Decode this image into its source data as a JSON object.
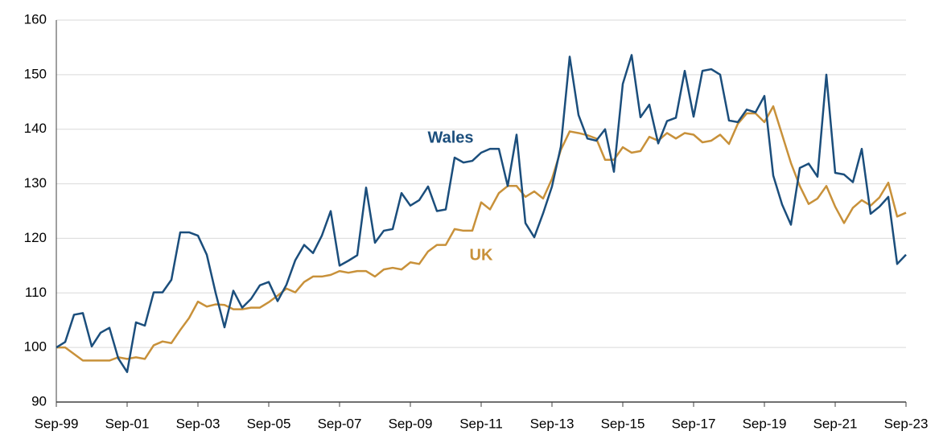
{
  "chart_data": {
    "type": "line",
    "categories": [
      "Sep-99",
      null,
      null,
      null,
      null,
      null,
      null,
      null,
      "Sep-01",
      null,
      null,
      null,
      null,
      null,
      null,
      null,
      "Sep-03",
      null,
      null,
      null,
      null,
      null,
      null,
      null,
      "Sep-05",
      null,
      null,
      null,
      null,
      null,
      null,
      null,
      "Sep-07",
      null,
      null,
      null,
      null,
      null,
      null,
      null,
      "Sep-09",
      null,
      null,
      null,
      null,
      null,
      null,
      null,
      "Sep-11",
      null,
      null,
      null,
      null,
      null,
      null,
      null,
      "Sep-13",
      null,
      null,
      null,
      null,
      null,
      null,
      null,
      "Sep-15",
      null,
      null,
      null,
      null,
      null,
      null,
      null,
      "Sep-17",
      null,
      null,
      null,
      null,
      null,
      null,
      null,
      "Sep-19",
      null,
      null,
      null,
      null,
      null,
      null,
      null,
      "Sep-21",
      null,
      null,
      null,
      null,
      null,
      null,
      null,
      "Sep-23"
    ],
    "series": [
      {
        "name": "Wales",
        "color": "#1b4e7c",
        "values": [
          100,
          101,
          106,
          106.3,
          100.2,
          102.7,
          103.6,
          98,
          95.5,
          104.6,
          104,
          110.1,
          110.1,
          112.4,
          121.1,
          121.1,
          120.5,
          117,
          110,
          103.7,
          110.4,
          107.3,
          108.9,
          111.4,
          112,
          108.5,
          111.5,
          116,
          118.8,
          117.3,
          120.5,
          125,
          115,
          115.9,
          116.9,
          129.3,
          119.2,
          121.4,
          121.7,
          128.3,
          126,
          127,
          129.5,
          125,
          125.3,
          134.8,
          133.9,
          134.2,
          135.7,
          136.4,
          136.4,
          129.6,
          139,
          122.8,
          120.2,
          124.6,
          129.5,
          136.8,
          153.3,
          142.6,
          138.3,
          137.9,
          140,
          132.2,
          148.3,
          153.6,
          142.2,
          144.5,
          137.4,
          141.5,
          142.1,
          150.7,
          142.3,
          150.7,
          151,
          150,
          141.6,
          141.3,
          143.6,
          143.1,
          146.1,
          131.5,
          126.2,
          122.5,
          132.9,
          133.7,
          131.3,
          150,
          132,
          131.7,
          130.3,
          136.4,
          124.5,
          125.8,
          127.6,
          115.3,
          117
        ]
      },
      {
        "name": "UK",
        "color": "#c8913a",
        "values": [
          100,
          100,
          98.8,
          97.6,
          97.6,
          97.6,
          97.6,
          98.2,
          97.9,
          98.2,
          97.9,
          100.4,
          101.1,
          100.8,
          103.2,
          105.4,
          108.4,
          107.5,
          107.9,
          107.8,
          107,
          107,
          107.3,
          107.3,
          108.3,
          109.5,
          110.8,
          110.1,
          112,
          113,
          113,
          113.3,
          114,
          113.7,
          114,
          114,
          113,
          114.3,
          114.6,
          114.3,
          115.6,
          115.3,
          117.6,
          118.8,
          118.8,
          121.7,
          121.4,
          121.4,
          126.6,
          125.3,
          128.3,
          129.6,
          129.6,
          127.6,
          128.6,
          127.3,
          130.9,
          136.2,
          139.6,
          139.3,
          138.9,
          138.3,
          134.4,
          134.4,
          136.7,
          135.7,
          136,
          138.6,
          137.9,
          139.3,
          138.3,
          139.3,
          139,
          137.6,
          137.9,
          139,
          137.3,
          141,
          142.9,
          142.9,
          141.3,
          144.2,
          139,
          133.8,
          129.6,
          126.3,
          127.3,
          129.6,
          125.8,
          122.8,
          125.6,
          127,
          126,
          127.5,
          130.2,
          124,
          124.7
        ]
      }
    ],
    "ylim": [
      90,
      160
    ],
    "yticks": [
      90,
      100,
      110,
      120,
      130,
      140,
      150,
      160
    ],
    "grid": true
  }
}
